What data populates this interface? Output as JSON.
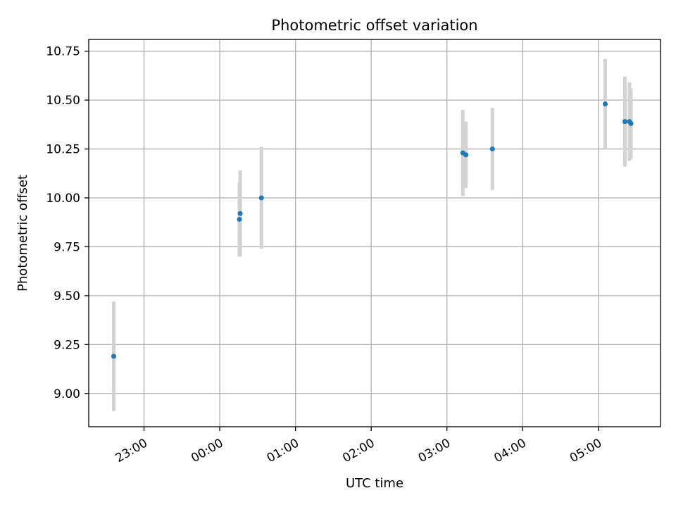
{
  "chart_data": {
    "type": "scatter",
    "title": "Photometric offset variation",
    "xlabel": "UTC time",
    "ylabel": "Photometric offset",
    "x_unit": "hours (UTC, ticks continue past midnight)",
    "xlim": [
      22.27,
      29.82
    ],
    "ylim": [
      8.83,
      10.81
    ],
    "grid": true,
    "x_ticks": [
      {
        "value": 23,
        "label": "23:00"
      },
      {
        "value": 24,
        "label": "00:00"
      },
      {
        "value": 25,
        "label": "01:00"
      },
      {
        "value": 26,
        "label": "02:00"
      },
      {
        "value": 27,
        "label": "03:00"
      },
      {
        "value": 28,
        "label": "04:00"
      },
      {
        "value": 29,
        "label": "05:00"
      }
    ],
    "y_ticks": [
      {
        "value": 9.0,
        "label": "9.00"
      },
      {
        "value": 9.25,
        "label": "9.25"
      },
      {
        "value": 9.5,
        "label": "9.50"
      },
      {
        "value": 9.75,
        "label": "9.75"
      },
      {
        "value": 10.0,
        "label": "10.00"
      },
      {
        "value": 10.25,
        "label": "10.25"
      },
      {
        "value": 10.5,
        "label": "10.50"
      },
      {
        "value": 10.75,
        "label": "10.75"
      }
    ],
    "colors": {
      "point": "#1f77b4",
      "errorbar": "#d3d3d3",
      "grid": "#b0b0b0"
    },
    "points": [
      {
        "x": 22.6,
        "y": 9.19,
        "yerr": 0.28
      },
      {
        "x": 24.26,
        "y": 9.89,
        "yerr": 0.19
      },
      {
        "x": 24.27,
        "y": 9.92,
        "yerr": 0.22
      },
      {
        "x": 24.55,
        "y": 10.0,
        "yerr": 0.26
      },
      {
        "x": 27.21,
        "y": 10.23,
        "yerr": 0.22
      },
      {
        "x": 27.25,
        "y": 10.22,
        "yerr": 0.17
      },
      {
        "x": 27.6,
        "y": 10.25,
        "yerr": 0.21
      },
      {
        "x": 29.09,
        "y": 10.48,
        "yerr": 0.23
      },
      {
        "x": 29.35,
        "y": 10.39,
        "yerr": 0.23
      },
      {
        "x": 29.41,
        "y": 10.39,
        "yerr": 0.2
      },
      {
        "x": 29.43,
        "y": 10.38,
        "yerr": 0.18
      }
    ]
  }
}
